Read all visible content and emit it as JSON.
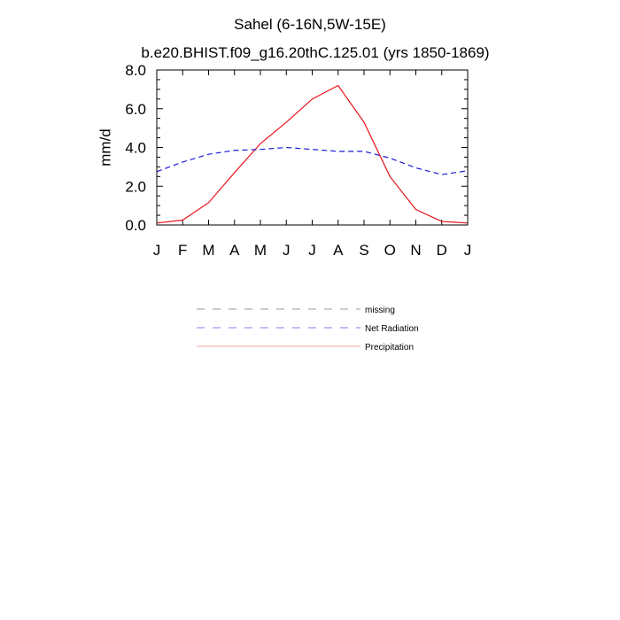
{
  "chart_data": {
    "type": "line",
    "title": "Sahel (6-16N,5W-15E)",
    "subtitle": "b.e20.BHIST.f09_g16.20thC.125.01 (yrs 1850-1869)",
    "xlabel": "",
    "ylabel": "mm/d",
    "categories": [
      "J",
      "F",
      "M",
      "A",
      "M",
      "J",
      "J",
      "A",
      "S",
      "O",
      "N",
      "D",
      "J"
    ],
    "ylim": [
      0,
      8
    ],
    "yticks": [
      0,
      2,
      4,
      6,
      8
    ],
    "ytick_labels": [
      "0.0",
      "2.0",
      "4.0",
      "6.0",
      "8.0"
    ],
    "grid": false,
    "legend_position": "below",
    "series": [
      {
        "name": "Precipitation",
        "color": "#e8121a",
        "style": "solid",
        "values": [
          0.1,
          0.25,
          1.15,
          2.7,
          4.2,
          5.3,
          6.5,
          7.2,
          5.3,
          2.5,
          0.8,
          0.18,
          0.1
        ]
      },
      {
        "name": "Net Radiation",
        "color": "#1a1ad6",
        "style": "dashed",
        "values": [
          2.75,
          3.25,
          3.65,
          3.85,
          3.9,
          4.0,
          3.9,
          3.8,
          3.8,
          3.45,
          2.95,
          2.6,
          2.8
        ]
      }
    ],
    "legend": [
      {
        "label": "missing",
        "color": "#9a9a9a",
        "style": "dashed"
      },
      {
        "label": "Net Radiation",
        "color": "#7f7ff0",
        "style": "dashed"
      },
      {
        "label": "Precipitation",
        "color": "#f5a0a4",
        "style": "solid"
      }
    ]
  }
}
